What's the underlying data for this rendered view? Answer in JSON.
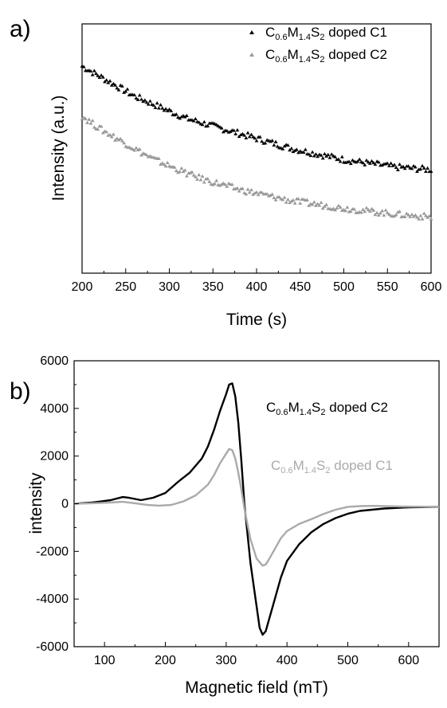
{
  "chart_data": [
    {
      "panel_label": "a)",
      "type": "scatter",
      "xlabel": "Time (s)",
      "ylabel": "Intensity (a.u.)",
      "xlim": [
        200,
        600
      ],
      "ylim": [
        0,
        1
      ],
      "x_ticks": [
        "200",
        "250",
        "300",
        "350",
        "400",
        "450",
        "500",
        "550",
        "600"
      ],
      "y_ticks_labeled": false,
      "legend_position": "top-right",
      "series": [
        {
          "name_parts": [
            "C",
            "0.6",
            "M",
            "1.4",
            "S",
            "2",
            " doped C1"
          ],
          "color": "#000000",
          "marker": "triangle",
          "x": [
            200,
            220,
            240,
            260,
            280,
            300,
            320,
            340,
            360,
            380,
            400,
            420,
            440,
            460,
            480,
            500,
            520,
            540,
            560,
            580,
            600
          ],
          "y": [
            0.83,
            0.79,
            0.75,
            0.71,
            0.68,
            0.65,
            0.62,
            0.6,
            0.58,
            0.56,
            0.54,
            0.52,
            0.5,
            0.485,
            0.47,
            0.455,
            0.445,
            0.435,
            0.425,
            0.42,
            0.415
          ]
        },
        {
          "name_parts": [
            "C",
            "0.6",
            "M",
            "1.4",
            "S",
            "2",
            " doped C2"
          ],
          "color": "#999999",
          "marker": "triangle",
          "x": [
            200,
            220,
            240,
            260,
            280,
            300,
            320,
            340,
            360,
            380,
            400,
            420,
            440,
            460,
            480,
            500,
            520,
            540,
            560,
            580,
            600
          ],
          "y": [
            0.63,
            0.58,
            0.54,
            0.5,
            0.46,
            0.43,
            0.4,
            0.375,
            0.355,
            0.335,
            0.32,
            0.305,
            0.29,
            0.28,
            0.27,
            0.26,
            0.252,
            0.244,
            0.236,
            0.23,
            0.225
          ]
        }
      ]
    },
    {
      "panel_label": "b)",
      "type": "line",
      "xlabel": "Magnetic field (mT)",
      "ylabel": "intensity",
      "xlim": [
        50,
        650
      ],
      "ylim": [
        -6000,
        6000
      ],
      "x_ticks": [
        100,
        200,
        300,
        400,
        500,
        600
      ],
      "y_ticks": [
        -6000,
        -4000,
        -2000,
        0,
        2000,
        4000,
        6000
      ],
      "legend_position": "inline-right",
      "series": [
        {
          "name_parts": [
            "C",
            "0.6",
            "M",
            "1.4",
            "S",
            "2",
            " doped C2"
          ],
          "color": "#000000",
          "x": [
            50,
            80,
            110,
            130,
            140,
            160,
            180,
            200,
            220,
            240,
            260,
            270,
            280,
            290,
            300,
            305,
            310,
            315,
            320,
            325,
            330,
            340,
            350,
            355,
            360,
            365,
            370,
            380,
            390,
            400,
            420,
            440,
            460,
            480,
            500,
            520,
            540,
            560,
            600,
            650
          ],
          "y": [
            0,
            50,
            150,
            280,
            250,
            150,
            250,
            450,
            900,
            1300,
            1900,
            2400,
            3100,
            3900,
            4600,
            5000,
            5050,
            4500,
            3400,
            1800,
            0,
            -2500,
            -4300,
            -5200,
            -5500,
            -5350,
            -4900,
            -4000,
            -3100,
            -2400,
            -1700,
            -1200,
            -850,
            -600,
            -420,
            -300,
            -250,
            -200,
            -150,
            -130
          ]
        },
        {
          "name_parts": [
            "C",
            "0.6",
            "M",
            "1.4",
            "S",
            "2",
            " doped C1"
          ],
          "color": "#aaaaaa",
          "x": [
            50,
            80,
            110,
            130,
            150,
            170,
            190,
            210,
            230,
            250,
            270,
            280,
            290,
            300,
            305,
            310,
            315,
            320,
            325,
            330,
            340,
            350,
            360,
            365,
            370,
            380,
            390,
            400,
            420,
            440,
            460,
            480,
            500,
            520,
            540,
            560,
            600,
            650
          ],
          "y": [
            0,
            20,
            50,
            80,
            20,
            -50,
            -80,
            -50,
            100,
            350,
            800,
            1200,
            1700,
            2100,
            2300,
            2250,
            1900,
            1300,
            600,
            -200,
            -1500,
            -2300,
            -2600,
            -2550,
            -2350,
            -1900,
            -1450,
            -1150,
            -850,
            -650,
            -430,
            -250,
            -130,
            -100,
            -90,
            -100,
            -120,
            -130
          ]
        }
      ]
    }
  ]
}
